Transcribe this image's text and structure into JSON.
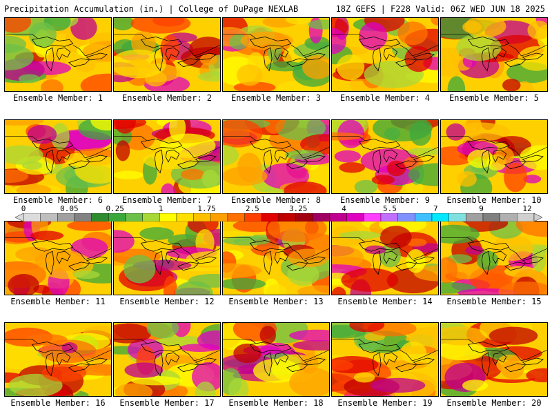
{
  "header": {
    "title": "Precipitation Accumulation (in.) | College of DuPage NEXLAB",
    "run_info": "18Z GEFS | F228 Valid: 06Z WED JUN 18 2025"
  },
  "members": [
    {
      "label": "Ensemble Member: 1"
    },
    {
      "label": "Ensemble Member: 2"
    },
    {
      "label": "Ensemble Member: 3"
    },
    {
      "label": "Ensemble Member: 4"
    },
    {
      "label": "Ensemble Member: 5"
    },
    {
      "label": "Ensemble Member: 6"
    },
    {
      "label": "Ensemble Member: 7"
    },
    {
      "label": "Ensemble Member: 8"
    },
    {
      "label": "Ensemble Member: 9"
    },
    {
      "label": "Ensemble Member: 10"
    },
    {
      "label": "Ensemble Member: 11"
    },
    {
      "label": "Ensemble Member: 12"
    },
    {
      "label": "Ensemble Member: 13"
    },
    {
      "label": "Ensemble Member: 14"
    },
    {
      "label": "Ensemble Member: 15"
    },
    {
      "label": "Ensemble Member: 16"
    },
    {
      "label": "Ensemble Member: 17"
    },
    {
      "label": "Ensemble Member: 18"
    },
    {
      "label": "Ensemble Member: 19"
    },
    {
      "label": "Ensemble Member: 20"
    }
  ],
  "colorbar": {
    "labels": [
      "0",
      "0.05",
      "0.25",
      "1",
      "1.75",
      "2.5",
      "3.25",
      "4",
      "5.5",
      "7",
      "9",
      "12"
    ],
    "colors": [
      "#dcdcdc",
      "#bebebe",
      "#a0a0a0",
      "#828282",
      "#2e8b2e",
      "#3ca83c",
      "#6cc04a",
      "#a8d838",
      "#ffff00",
      "#ffe000",
      "#ffc000",
      "#ffa000",
      "#ff7000",
      "#ff4000",
      "#e00000",
      "#c00000",
      "#a00010",
      "#a00060",
      "#c00090",
      "#e000c0",
      "#ff40ff",
      "#c070ff",
      "#8090ff",
      "#40c0ff",
      "#00e8ff",
      "#80e0e0",
      "#a0a0a0",
      "#808080",
      "#b0b0b0",
      "#d0d0d0"
    ]
  }
}
